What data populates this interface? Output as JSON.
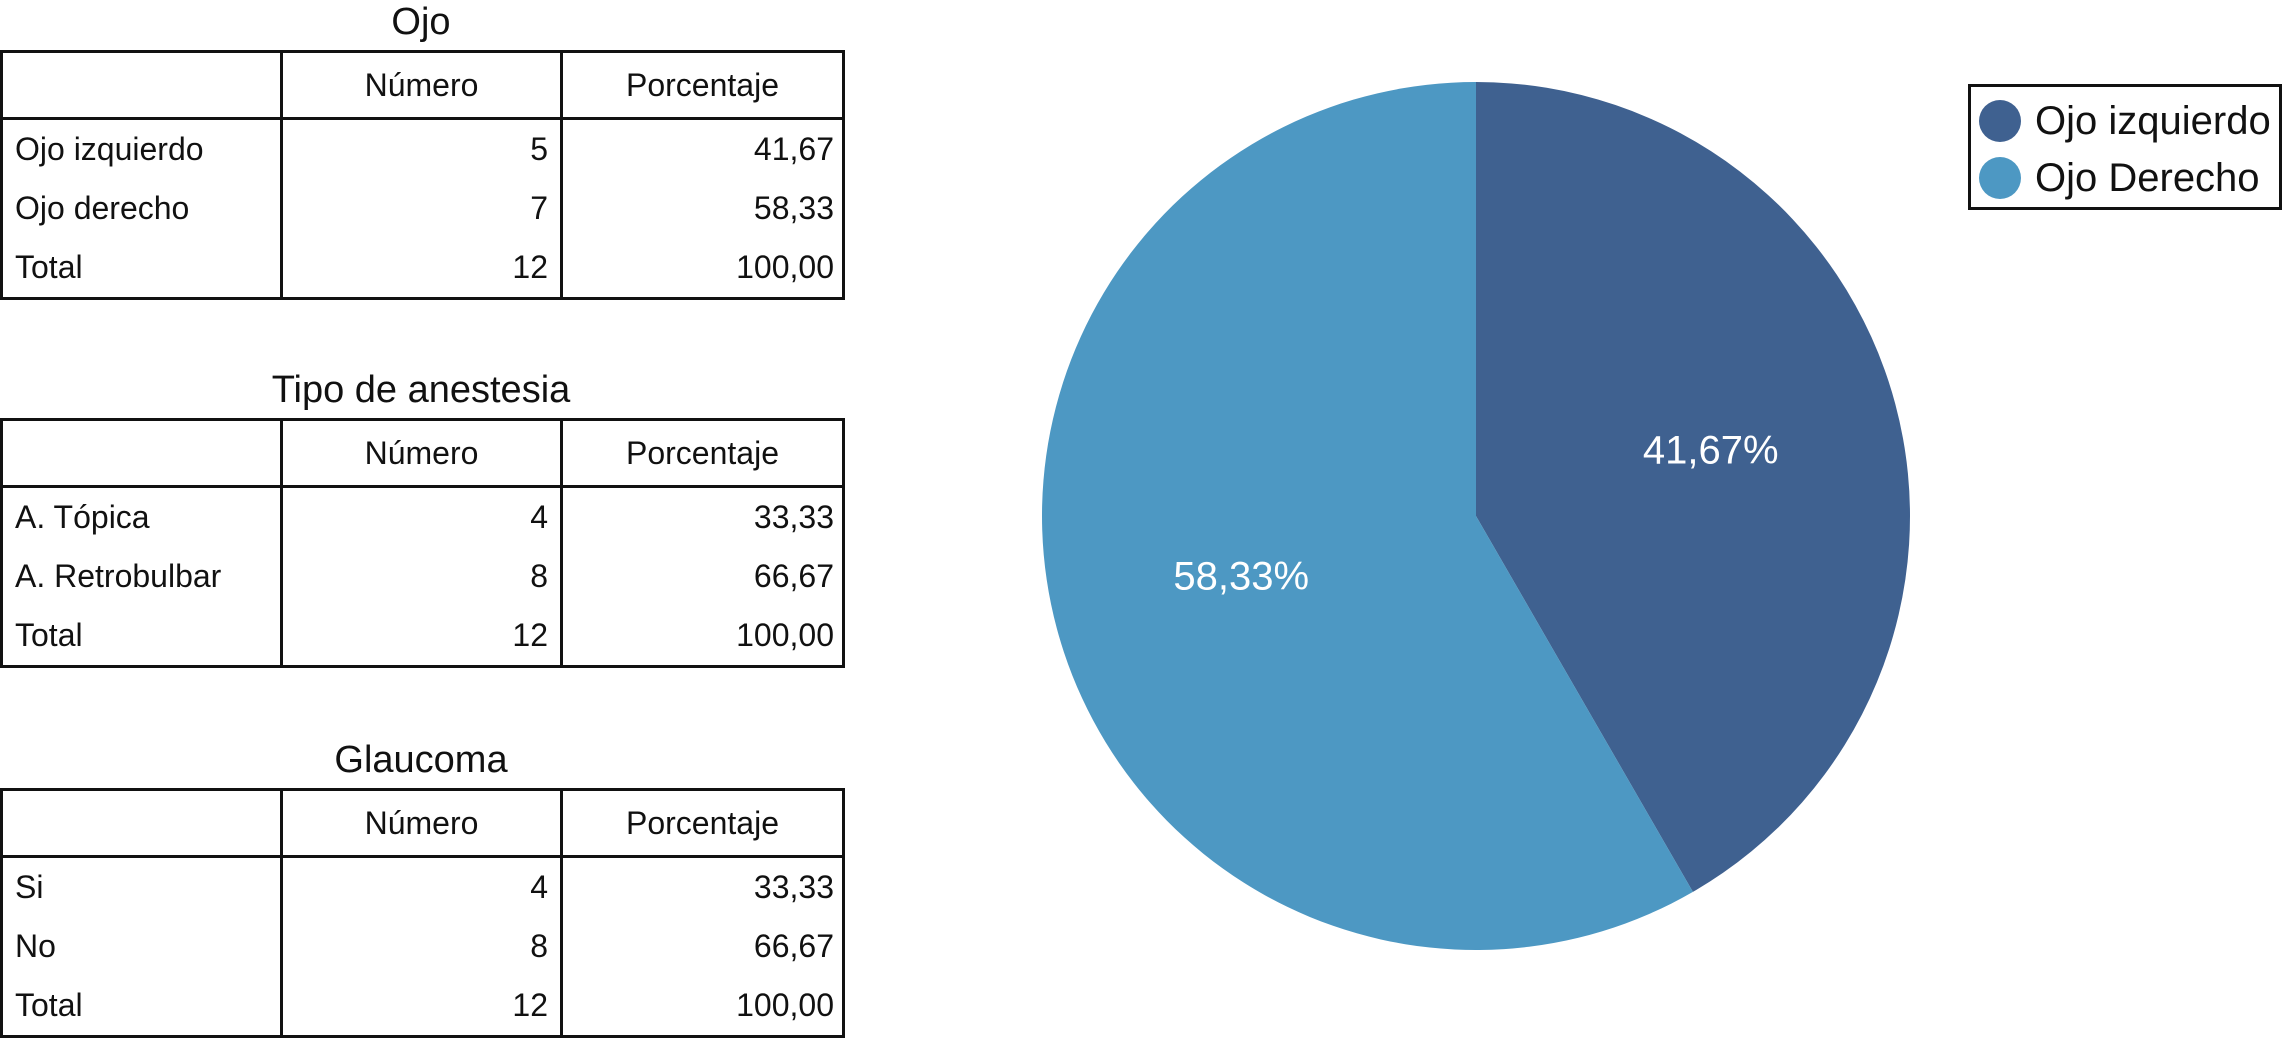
{
  "tables": [
    {
      "title": "Ojo",
      "headers": [
        "",
        "Número",
        "Porcentaje"
      ],
      "rows": [
        {
          "label": "Ojo izquierdo",
          "numero": "5",
          "porcentaje": "41,67"
        },
        {
          "label": "Ojo derecho",
          "numero": "7",
          "porcentaje": "58,33"
        },
        {
          "label": "Total",
          "numero": "12",
          "porcentaje": "100,00"
        }
      ]
    },
    {
      "title": "Tipo de anestesia",
      "headers": [
        "",
        "Número",
        "Porcentaje"
      ],
      "rows": [
        {
          "label": "A. Tópica",
          "numero": "4",
          "porcentaje": "33,33"
        },
        {
          "label": "A. Retrobulbar",
          "numero": "8",
          "porcentaje": "66,67"
        },
        {
          "label": "Total",
          "numero": "12",
          "porcentaje": "100,00"
        }
      ]
    },
    {
      "title": "Glaucoma",
      "headers": [
        "",
        "Número",
        "Porcentaje"
      ],
      "rows": [
        {
          "label": "Si",
          "numero": "4",
          "porcentaje": "33,33"
        },
        {
          "label": "No",
          "numero": "8",
          "porcentaje": "66,67"
        },
        {
          "label": "Total",
          "numero": "12",
          "porcentaje": "100,00"
        }
      ]
    }
  ],
  "chart_data": {
    "type": "pie",
    "categories": [
      "Ojo izquierdo",
      "Ojo Derecho"
    ],
    "values": [
      41.67,
      58.33
    ],
    "labels": [
      "41,67%",
      "58,33%"
    ],
    "colors": [
      "#3f6190",
      "#4d98c3"
    ],
    "start": "12 o'clock, clockwise",
    "legend": {
      "placement": "top-right",
      "entries": [
        "Ojo izquierdo",
        "Ojo Derecho"
      ]
    }
  }
}
